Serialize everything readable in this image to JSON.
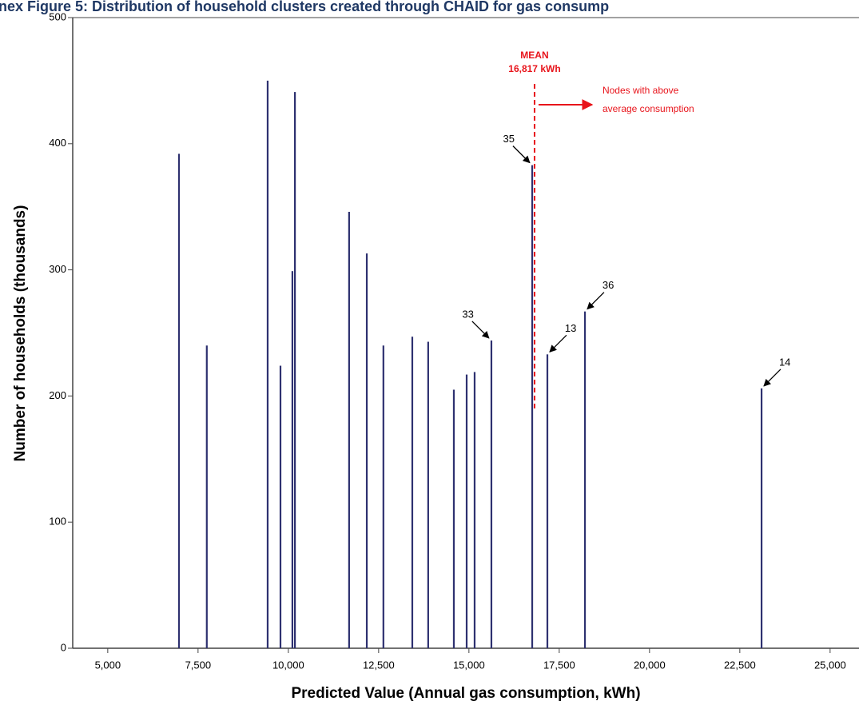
{
  "chart_data": {
    "type": "bar",
    "title": "nex Figure 5: Distribution of household clusters created through CHAID for gas consump",
    "x_label": "Predicted Value (Annual gas consumption, kWh)",
    "y_label": "Number of households (thousands)",
    "x": [
      6970,
      7740,
      9425,
      9780,
      10110,
      10180,
      11680,
      12170,
      12630,
      13430,
      13870,
      14580,
      14935,
      15155,
      15620,
      16750,
      17170,
      18210,
      23100
    ],
    "values": [
      392,
      240,
      450,
      224,
      299,
      441,
      346,
      313,
      240,
      247,
      243,
      205,
      217,
      219,
      244,
      383,
      233,
      267,
      206
    ],
    "labels": [
      null,
      null,
      null,
      null,
      null,
      null,
      null,
      null,
      null,
      null,
      null,
      null,
      null,
      null,
      "33",
      "35",
      "13",
      "36",
      "14"
    ],
    "color": "#2e3170",
    "xlim": [
      4030,
      25800
    ],
    "xticks": [
      {
        "value": 5000,
        "label": "5,000"
      },
      {
        "value": 7500,
        "label": "7,500"
      },
      {
        "value": 10000,
        "label": "10,000"
      },
      {
        "value": 12500,
        "label": "12,500"
      },
      {
        "value": 15000,
        "label": "15,000"
      },
      {
        "value": 17500,
        "label": "17,500"
      },
      {
        "value": 20000,
        "label": "20,000"
      },
      {
        "value": 22500,
        "label": "22,500"
      },
      {
        "value": 25000,
        "label": "25,000"
      }
    ],
    "ylim": [
      0,
      500
    ],
    "yticks": [
      0,
      100,
      200,
      300,
      400,
      500
    ],
    "mean": {
      "value": 16817,
      "title": "MEAN",
      "label": "16,817 kWh",
      "note": [
        "Nodes with above",
        "average consumption"
      ],
      "color": "#e8141b"
    }
  }
}
